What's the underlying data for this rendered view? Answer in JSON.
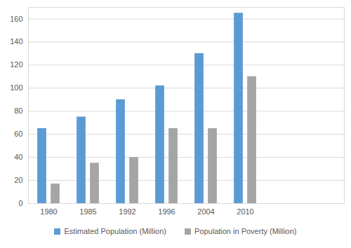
{
  "chart_data": {
    "type": "bar",
    "categories": [
      "1980",
      "1985",
      "1992",
      "1996",
      "2004",
      "2010",
      null,
      null
    ],
    "series": [
      {
        "name": "Estimated Population (Million)",
        "color": "#5b9bd5",
        "values": [
          65,
          75,
          90,
          102,
          130,
          165,
          null,
          null
        ]
      },
      {
        "name": "Population in Poverty (Million)",
        "color": "#a5a5a5",
        "values": [
          17,
          35,
          40,
          65,
          65,
          110,
          null,
          null
        ]
      }
    ],
    "ylim": [
      0,
      170
    ],
    "yticks": [
      0,
      20,
      40,
      60,
      80,
      100,
      120,
      140,
      160
    ],
    "grid": true,
    "legend": "bottom"
  }
}
